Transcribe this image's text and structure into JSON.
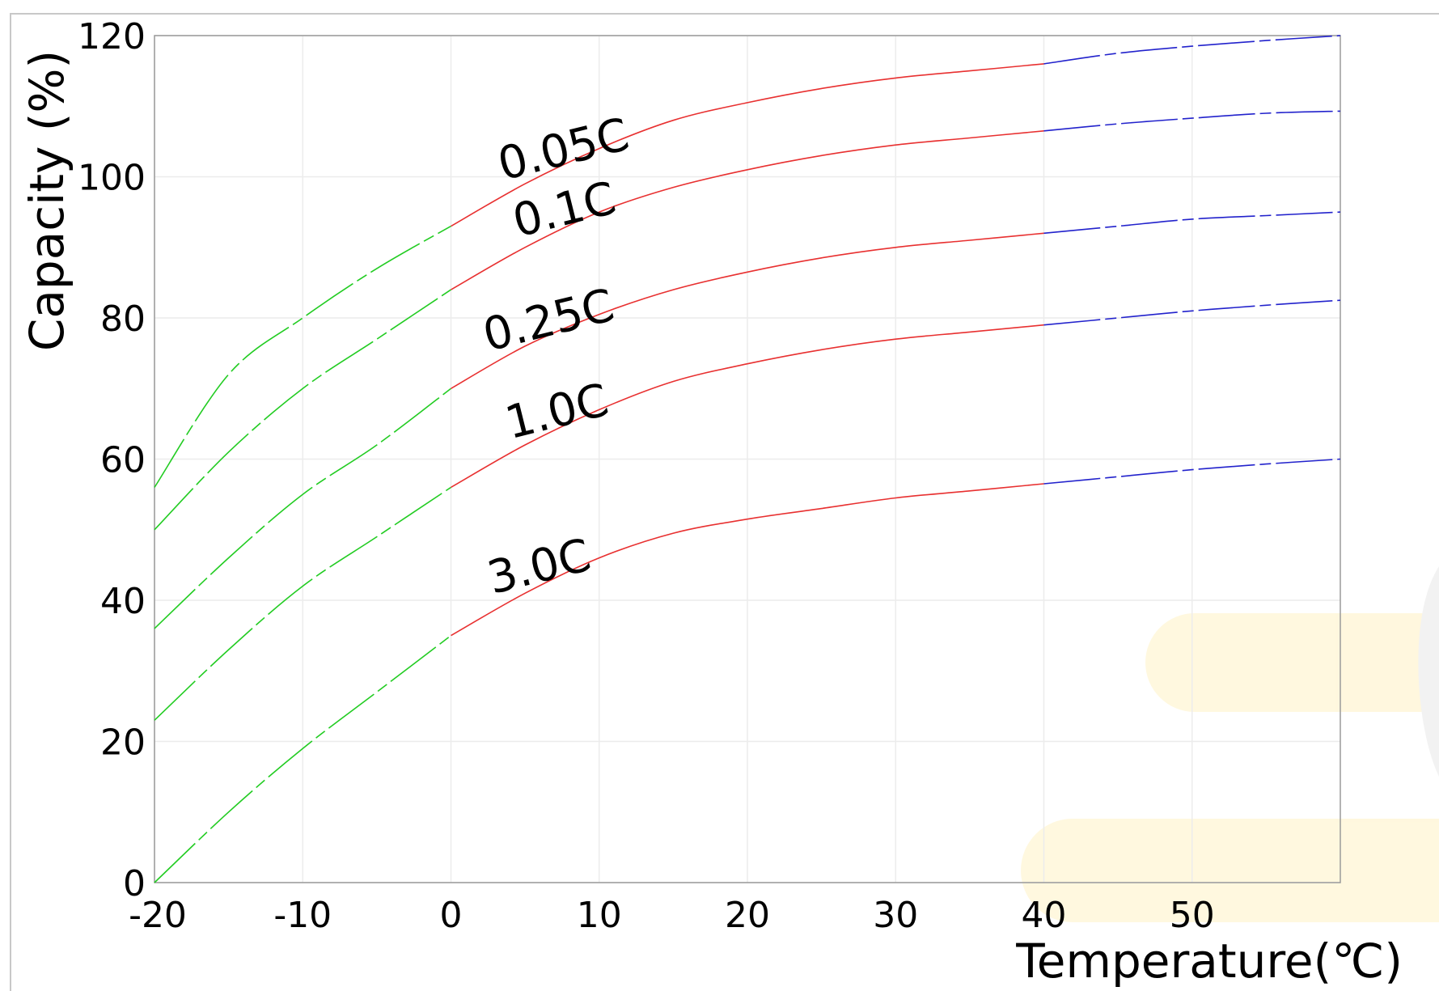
{
  "chart_data": {
    "type": "line",
    "title": "",
    "xlabel": "Temperature(℃)",
    "ylabel": "Capacity (%)",
    "xlim": [
      -20,
      60
    ],
    "ylim": [
      0,
      120
    ],
    "x_ticks": [
      "-20",
      "-10",
      "0",
      "10",
      "20",
      "30",
      "40",
      "50"
    ],
    "y_ticks": [
      "0",
      "20",
      "40",
      "60",
      "80",
      "100",
      "120"
    ],
    "grid": true,
    "legend": "none",
    "x": [
      -20,
      -15,
      -10,
      -5,
      0,
      5,
      10,
      15,
      20,
      25,
      30,
      35,
      40,
      45,
      50,
      55,
      60
    ],
    "series": [
      {
        "name": "0.05C",
        "values": [
          56,
          72,
          80,
          87,
          93,
          99,
          104,
          108,
          110.5,
          112.5,
          114,
          115,
          116,
          117.5,
          118.5,
          119.3,
          120
        ]
      },
      {
        "name": "0.1C",
        "values": [
          50,
          61,
          70,
          77,
          84,
          90,
          95,
          98.5,
          101,
          103,
          104.5,
          105.5,
          106.5,
          107.5,
          108.3,
          109,
          109.3
        ]
      },
      {
        "name": "0.25C",
        "values": [
          36,
          46,
          55,
          62,
          70,
          76,
          80.5,
          84,
          86.5,
          88.5,
          90,
          91,
          92,
          93,
          94,
          94.5,
          95
        ]
      },
      {
        "name": "1.0C",
        "values": [
          23,
          33,
          42,
          49,
          56,
          62,
          67,
          71,
          73.5,
          75.5,
          77,
          78,
          79,
          80,
          81,
          81.8,
          82.5
        ]
      },
      {
        "name": "3.0C",
        "values": [
          0,
          10,
          19,
          27,
          35,
          41,
          46,
          49.5,
          51.5,
          53,
          54.5,
          55.5,
          56.5,
          57.5,
          58.5,
          59.3,
          60
        ]
      }
    ],
    "segment_colors": {
      "low": "#22cc22",
      "mid": "#e83030",
      "high": "#2222cc"
    }
  }
}
